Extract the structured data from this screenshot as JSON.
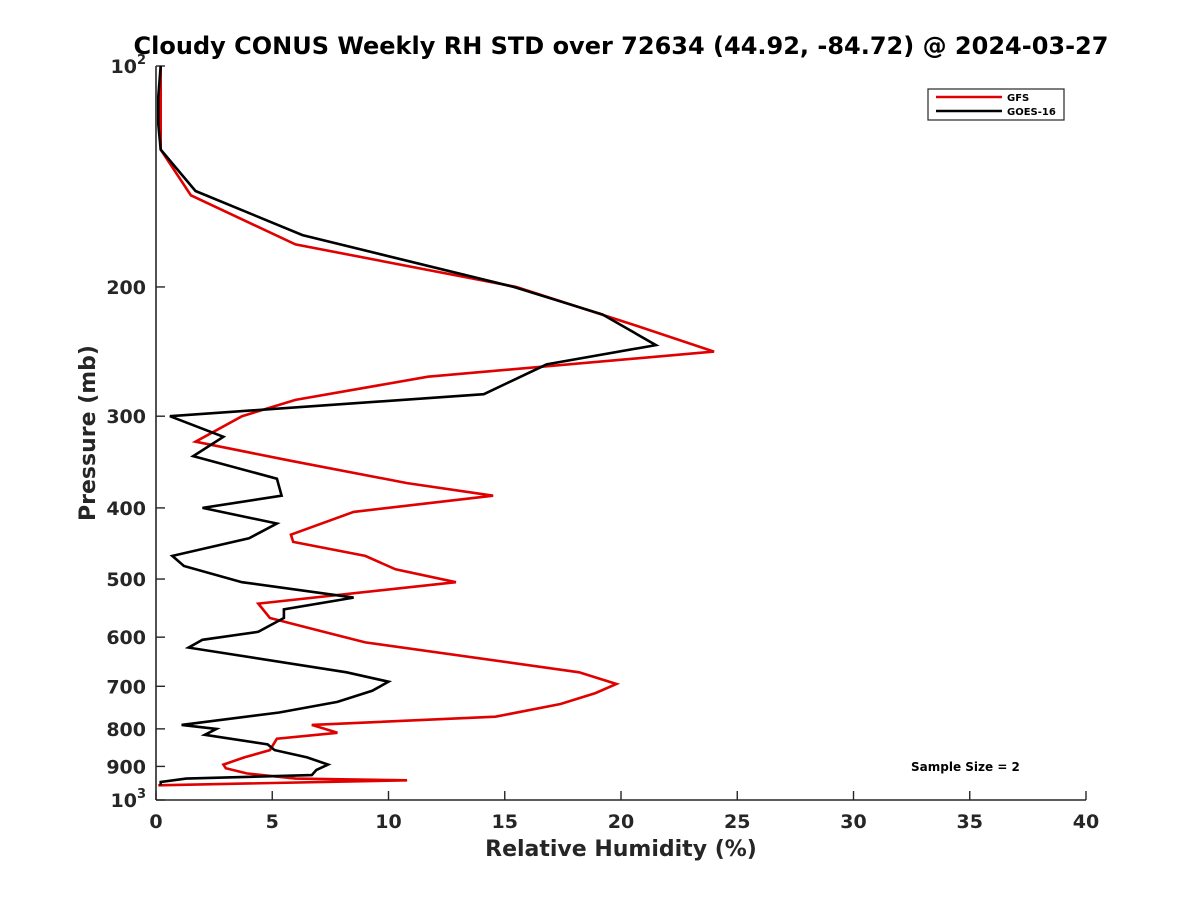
{
  "chart_data": {
    "type": "line",
    "title": "Cloudy CONUS Weekly RH STD over 72634 (44.92, -84.72) @ 2024-03-27",
    "xlabel": "Relative Humidity (%)",
    "ylabel": "Pressure (mb)",
    "xlim": [
      0,
      40
    ],
    "ylim": [
      100,
      1000
    ],
    "y_scale": "log",
    "y_reversed": true,
    "grid": false,
    "legend_position": "top-right",
    "annotation": "Sample Size = 2",
    "x_ticks": [
      "0",
      "5",
      "10",
      "15",
      "20",
      "25",
      "30",
      "35",
      "40"
    ],
    "y_ticks": [
      {
        "base": "10",
        "sup": "2"
      },
      {
        "base": "200",
        "sup": ""
      },
      {
        "base": "300",
        "sup": ""
      },
      {
        "base": "400",
        "sup": ""
      },
      {
        "base": "500",
        "sup": ""
      },
      {
        "base": "600",
        "sup": ""
      },
      {
        "base": "700",
        "sup": ""
      },
      {
        "base": "800",
        "sup": ""
      },
      {
        "base": "900",
        "sup": ""
      },
      {
        "base": "10",
        "sup": "3"
      }
    ],
    "series": [
      {
        "name": "GFS",
        "color": "#e00000",
        "x": [
          0.2,
          0.2,
          0.2,
          0.2,
          1.5,
          6.0,
          15.5,
          20.5,
          24.0,
          11.7,
          6.0,
          3.7,
          1.7,
          5.8,
          10.8,
          14.5,
          8.5,
          5.8,
          5.9,
          9.0,
          10.3,
          12.9,
          4.4,
          4.9,
          6.3,
          9.0,
          18.2,
          19.8,
          18.9,
          17.4,
          14.6,
          6.7,
          7.8,
          5.2,
          4.9,
          3.8,
          2.9,
          3.0,
          3.9,
          6.0,
          10.8,
          0.1
        ],
        "y": [
          100,
          110,
          120,
          130,
          150,
          175,
          200,
          225,
          245,
          265,
          285,
          300,
          325,
          345,
          370,
          385,
          405,
          435,
          445,
          465,
          485,
          505,
          540,
          565,
          580,
          610,
          670,
          695,
          715,
          740,
          770,
          790,
          810,
          825,
          855,
          875,
          895,
          905,
          920,
          935,
          940,
          955
        ]
      },
      {
        "name": "GOES-16",
        "color": "#000000",
        "x": [
          0.2,
          0.1,
          0.1,
          0.2,
          1.7,
          6.3,
          15.4,
          19.2,
          21.5,
          16.8,
          14.1,
          0.6,
          2.9,
          1.6,
          5.2,
          5.4,
          2.0,
          5.2,
          4.0,
          0.7,
          1.2,
          3.7,
          8.5,
          5.5,
          5.5,
          4.4,
          2.0,
          1.4,
          8.2,
          10.0,
          9.3,
          7.8,
          5.3,
          1.1,
          2.6,
          2.1,
          4.8,
          5.1,
          6.5,
          7.4,
          6.9,
          6.7,
          1.3,
          0.2,
          0.2
        ],
        "y": [
          100,
          110,
          120,
          130,
          148,
          170,
          200,
          218,
          240,
          255,
          280,
          300,
          320,
          340,
          365,
          385,
          400,
          420,
          440,
          465,
          480,
          505,
          530,
          550,
          565,
          590,
          605,
          620,
          670,
          690,
          710,
          735,
          760,
          790,
          800,
          815,
          840,
          855,
          875,
          895,
          910,
          925,
          935,
          945,
          955
        ]
      }
    ]
  }
}
